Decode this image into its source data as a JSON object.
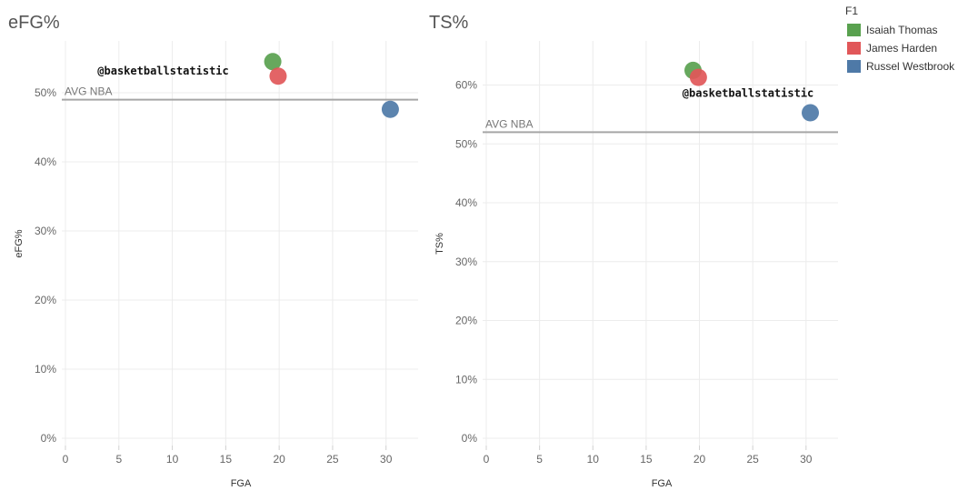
{
  "legend": {
    "title": "F1",
    "entries": [
      {
        "name": "Isaiah Thomas",
        "color": "#59a14f"
      },
      {
        "name": "James Harden",
        "color": "#e15759"
      },
      {
        "name": "Russel Westbrook",
        "color": "#4e79a7"
      }
    ]
  },
  "chart_data": [
    {
      "type": "scatter",
      "title": "eFG%",
      "xlabel": "FGA",
      "ylabel": "eFG%",
      "xlim": [
        0,
        33
      ],
      "ylim": [
        0,
        0.575
      ],
      "xticks": [
        0,
        5,
        10,
        15,
        20,
        25,
        30
      ],
      "yticks": [
        0,
        0.1,
        0.2,
        0.3,
        0.4,
        0.5
      ],
      "ytick_labels": [
        "0%",
        "10%",
        "20%",
        "30%",
        "40%",
        "50%"
      ],
      "grid": true,
      "reference_line": {
        "label": "AVG NBA",
        "value": 0.49
      },
      "annotation": {
        "text": "@basketballstatistic",
        "x": 3.0,
        "y": 0.526
      },
      "points": [
        {
          "series": "Isaiah Thomas",
          "x": 19.4,
          "y": 0.545
        },
        {
          "series": "James Harden",
          "x": 19.9,
          "y": 0.524
        },
        {
          "series": "Russel Westbrook",
          "x": 30.4,
          "y": 0.476
        }
      ]
    },
    {
      "type": "scatter",
      "title": "TS%",
      "xlabel": "FGA",
      "ylabel": "TS%",
      "xlim": [
        0,
        33
      ],
      "ylim": [
        0,
        0.675
      ],
      "xticks": [
        0,
        5,
        10,
        15,
        20,
        25,
        30
      ],
      "yticks": [
        0,
        0.1,
        0.2,
        0.3,
        0.4,
        0.5,
        0.6
      ],
      "ytick_labels": [
        "0%",
        "10%",
        "20%",
        "30%",
        "40%",
        "50%",
        "60%"
      ],
      "grid": true,
      "reference_line": {
        "label": "AVG NBA",
        "value": 0.52
      },
      "annotation": {
        "text": "@basketballstatistic",
        "x": 18.4,
        "y": 0.58
      },
      "points": [
        {
          "series": "Isaiah Thomas",
          "x": 19.4,
          "y": 0.625
        },
        {
          "series": "James Harden",
          "x": 19.9,
          "y": 0.613
        },
        {
          "series": "Russel Westbrook",
          "x": 30.4,
          "y": 0.553
        }
      ]
    }
  ]
}
